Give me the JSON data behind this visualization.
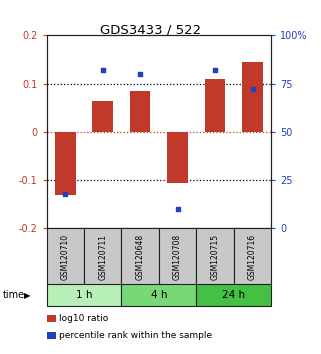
{
  "title": "GDS3433 / 522",
  "samples": [
    "GSM120710",
    "GSM120711",
    "GSM120648",
    "GSM120708",
    "GSM120715",
    "GSM120716"
  ],
  "log10_ratio": [
    -0.13,
    0.065,
    0.085,
    -0.105,
    0.11,
    0.145
  ],
  "percentile": [
    18,
    82,
    80,
    10,
    82,
    72
  ],
  "bar_color": "#c0392b",
  "dot_color": "#2040c0",
  "ylim_left": [
    -0.2,
    0.2
  ],
  "ylim_right": [
    0,
    100
  ],
  "yticks_left": [
    -0.2,
    -0.1,
    0.0,
    0.1,
    0.2
  ],
  "yticks_right": [
    0,
    25,
    50,
    75,
    100
  ],
  "ytick_labels_left": [
    "-0.2",
    "-0.1",
    "0",
    "0.1",
    "0.2"
  ],
  "ytick_labels_right": [
    "0",
    "25",
    "50",
    "75",
    "100%"
  ],
  "hlines_black_dotted": [
    0.1,
    -0.1
  ],
  "hline_red_dotted": 0.0,
  "time_groups": [
    {
      "label": "1 h",
      "cols": [
        0,
        1
      ],
      "color": "#b8efb8"
    },
    {
      "label": "4 h",
      "cols": [
        2,
        3
      ],
      "color": "#78d878"
    },
    {
      "label": "24 h",
      "cols": [
        4,
        5
      ],
      "color": "#44c044"
    }
  ],
  "legend_items": [
    {
      "label": "log10 ratio",
      "color": "#c0392b"
    },
    {
      "label": "percentile rank within the sample",
      "color": "#2040c0"
    }
  ],
  "bar_width": 0.55,
  "plot_bg": "#ffffff",
  "sample_box_color": "#c8c8c8",
  "sample_box_edge": "#202020"
}
